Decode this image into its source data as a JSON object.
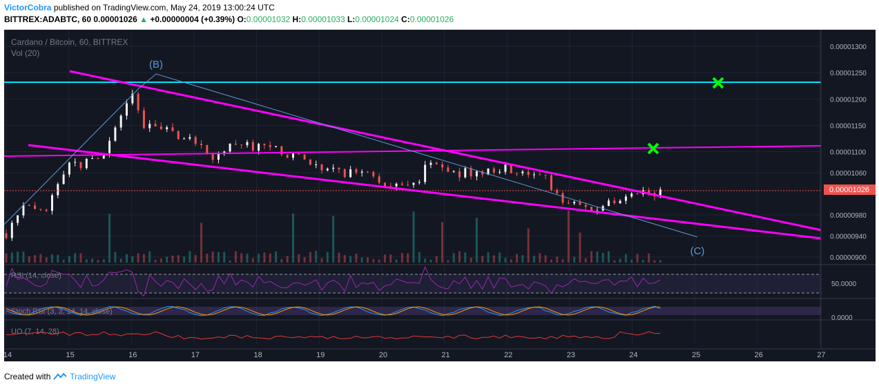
{
  "header": {
    "author": "VictorCobra",
    "published": "published on TradingView.com, May 24, 2019 13:00:24 UTC",
    "symbol": "BITTREX:ADABTC, 60",
    "last": "0.00001026",
    "change_arrow": "▲",
    "change": "+0.00000004 (+0.39%)",
    "o_label": "O:",
    "o": "0.00001032",
    "h_label": "H:",
    "h": "0.00001033",
    "l_label": "L:",
    "l": "0.00001024",
    "c_label": "C:",
    "c": "0.00001026"
  },
  "chart_legend": {
    "title": "Cardano / Bitcoin, 60, BITTREX",
    "volume": "Vol (20)",
    "rsi": "RSI (14, close)",
    "stoch": "Stoch RSI (3, 3, 14, 14, close)",
    "uo": "UO (7, 14, 28)"
  },
  "annotations": {
    "wave_b": "(B)",
    "wave_c": "(C)"
  },
  "footer": {
    "created_with": "Created with",
    "brand": "TradingView"
  },
  "colors": {
    "background": "#131722",
    "up_candle": "#f4f4f4",
    "down_candle": "#ef5350",
    "trendline": "#ff00ff",
    "resistance": "#00e5ff",
    "target_mark": "#00ff00",
    "wave_line": "#5b9bd5",
    "price_tag": "#ef5350",
    "rsi_line": "#9c27b0",
    "stoch_k": "#2196f3",
    "stoch_d": "#ff9800",
    "uo_line": "#e53935"
  },
  "chart_data": {
    "type": "candlestick",
    "x_ticks": [
      "14",
      "15",
      "16",
      "17",
      "18",
      "19",
      "20",
      "21",
      "22",
      "23",
      "24",
      "25",
      "26",
      "27"
    ],
    "y_ticks": [
      "0.00001300",
      "0.00001250",
      "0.00001200",
      "0.00001150",
      "0.00001100",
      "0.00001060",
      "0.00000980",
      "0.00000940",
      "0.00000900"
    ],
    "price_tag": "0.00001026",
    "rsi_tick": "50.0000",
    "stoch_tick": "0.0000",
    "close_path": [
      {
        "day": 14.0,
        "price": 9.45e-06
      },
      {
        "day": 14.3,
        "price": 9.95e-06
      },
      {
        "day": 14.6,
        "price": 9.8e-06
      },
      {
        "day": 15.0,
        "price": 1.07e-05
      },
      {
        "day": 15.3,
        "price": 1.08e-05
      },
      {
        "day": 15.6,
        "price": 1.1e-05
      },
      {
        "day": 16.0,
        "price": 1.21e-05
      },
      {
        "day": 16.2,
        "price": 1.15e-05
      },
      {
        "day": 16.5,
        "price": 1.14e-05
      },
      {
        "day": 17.0,
        "price": 1.12e-05
      },
      {
        "day": 17.3,
        "price": 1.09e-05
      },
      {
        "day": 17.6,
        "price": 1.11e-05
      },
      {
        "day": 18.0,
        "price": 1.11e-05
      },
      {
        "day": 18.4,
        "price": 1.1e-05
      },
      {
        "day": 18.9,
        "price": 1.08e-05
      },
      {
        "day": 19.3,
        "price": 1.06e-05
      },
      {
        "day": 19.8,
        "price": 1.06e-05
      },
      {
        "day": 20.2,
        "price": 1.03e-05
      },
      {
        "day": 20.6,
        "price": 1.04e-05
      },
      {
        "day": 20.75,
        "price": 1.09e-05
      },
      {
        "day": 21.1,
        "price": 1.06e-05
      },
      {
        "day": 21.5,
        "price": 1.06e-05
      },
      {
        "day": 21.9,
        "price": 1.07e-05
      },
      {
        "day": 22.3,
        "price": 1.06e-05
      },
      {
        "day": 22.6,
        "price": 1.05e-05
      },
      {
        "day": 22.9,
        "price": 1.01e-05
      },
      {
        "day": 23.3,
        "price": 9.9e-06
      },
      {
        "day": 23.6,
        "price": 1e-05
      },
      {
        "day": 23.9,
        "price": 1.01e-05
      },
      {
        "day": 24.2,
        "price": 1.02e-05
      },
      {
        "day": 24.5,
        "price": 1.026e-05
      }
    ]
  }
}
